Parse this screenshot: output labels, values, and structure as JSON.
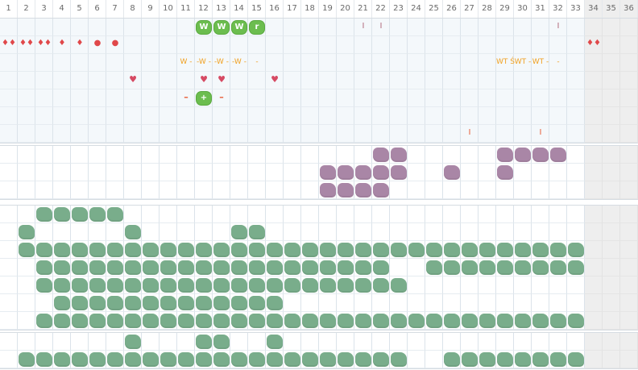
{
  "columns": [
    "1",
    "2",
    "3",
    "4",
    "5",
    "6",
    "7",
    "8",
    "9",
    "10",
    "11",
    "12",
    "13",
    "14",
    "15",
    "16",
    "17",
    "18",
    "19",
    "20",
    "21",
    "22",
    "23",
    "24",
    "25",
    "26",
    "27",
    "28",
    "29",
    "30",
    "31",
    "32",
    "33",
    "34",
    "35",
    "36"
  ],
  "grey_columns": [
    "34",
    "35",
    "36"
  ],
  "colors": {
    "green_tag": "#6cbd4f",
    "red": "#e0484a",
    "heart": "#d64a63",
    "orange": "#f0a020",
    "purple": "#a986a6",
    "green": "#79ad8b",
    "plus_red": "#e85a33"
  },
  "top_markers": [
    {
      "row": 0,
      "col": "12",
      "text": "W",
      "kind": "green_tag"
    },
    {
      "row": 0,
      "col": "13",
      "text": "W",
      "kind": "green_tag"
    },
    {
      "row": 0,
      "col": "14",
      "text": "W",
      "kind": "green_tag"
    },
    {
      "row": 0,
      "col": "15",
      "text": "r",
      "kind": "green_tag"
    },
    {
      "row": 0,
      "col": "21",
      "text": "I",
      "kind": "pink_bar"
    },
    {
      "row": 0,
      "col": "22",
      "text": "I",
      "kind": "pink_bar"
    },
    {
      "row": 0,
      "col": "32",
      "text": "I",
      "kind": "pink_bar"
    },
    {
      "row": 1,
      "col": "1",
      "text": "♦♦",
      "kind": "red"
    },
    {
      "row": 1,
      "col": "2",
      "text": "♦♦",
      "kind": "red"
    },
    {
      "row": 1,
      "col": "3",
      "text": "♦♦",
      "kind": "red"
    },
    {
      "row": 1,
      "col": "4",
      "text": "♦",
      "kind": "red"
    },
    {
      "row": 1,
      "col": "5",
      "text": "♦",
      "kind": "red"
    },
    {
      "row": 1,
      "col": "6",
      "text": "●",
      "kind": "red"
    },
    {
      "row": 1,
      "col": "7",
      "text": "●",
      "kind": "red"
    },
    {
      "row": 1,
      "col": "34",
      "text": "♦♦",
      "kind": "red"
    },
    {
      "row": 2,
      "col": "11",
      "text": "W -",
      "kind": "orange"
    },
    {
      "row": 2,
      "col": "12",
      "text": "-W -",
      "kind": "orange"
    },
    {
      "row": 2,
      "col": "13",
      "text": "-W -",
      "kind": "orange"
    },
    {
      "row": 2,
      "col": "14",
      "text": "-W -",
      "kind": "orange"
    },
    {
      "row": 2,
      "col": "15",
      "text": "-",
      "kind": "orange"
    },
    {
      "row": 2,
      "col": "29",
      "text": "WT Ś",
      "kind": "orange"
    },
    {
      "row": 2,
      "col": "30",
      "text": "WT -",
      "kind": "orange"
    },
    {
      "row": 2,
      "col": "31",
      "text": "WT -",
      "kind": "orange"
    },
    {
      "row": 2,
      "col": "32",
      "text": "-",
      "kind": "orange"
    },
    {
      "row": 3,
      "col": "8",
      "text": "♥",
      "kind": "heart"
    },
    {
      "row": 3,
      "col": "12",
      "text": "♥",
      "kind": "heart"
    },
    {
      "row": 3,
      "col": "13",
      "text": "♥",
      "kind": "heart"
    },
    {
      "row": 3,
      "col": "16",
      "text": "♥",
      "kind": "heart"
    },
    {
      "row": 4,
      "col": "11",
      "text": "–",
      "kind": "minus"
    },
    {
      "row": 4,
      "col": "12",
      "text": "+",
      "kind": "green_tag"
    },
    {
      "row": 4,
      "col": "13",
      "text": "–",
      "kind": "minus"
    },
    {
      "row": 6,
      "col": "27",
      "text": "I",
      "kind": "orange_bar"
    },
    {
      "row": 6,
      "col": "31",
      "text": "I",
      "kind": "orange_bar"
    }
  ],
  "purple_rows": [
    [
      "22",
      "23",
      "29",
      "30",
      "31",
      "32"
    ],
    [
      "19",
      "20",
      "21",
      "22",
      "23",
      "26",
      "29"
    ],
    [
      "19",
      "20",
      "21",
      "22"
    ]
  ],
  "green_rows": [
    [
      "3",
      "4",
      "5",
      "6",
      "7"
    ],
    [
      "2",
      "8",
      "14",
      "15"
    ],
    [
      "2",
      "3",
      "4",
      "5",
      "6",
      "7",
      "8",
      "9",
      "10",
      "11",
      "12",
      "13",
      "14",
      "15",
      "16",
      "17",
      "18",
      "19",
      "20",
      "21",
      "22",
      "23",
      "24",
      "25",
      "26",
      "27",
      "28",
      "29",
      "30",
      "31",
      "32",
      "33"
    ],
    [
      "3",
      "4",
      "5",
      "6",
      "7",
      "8",
      "9",
      "10",
      "11",
      "12",
      "13",
      "14",
      "15",
      "16",
      "17",
      "18",
      "19",
      "20",
      "21",
      "22",
      "25",
      "26",
      "27",
      "28",
      "29",
      "30",
      "31",
      "32",
      "33"
    ],
    [
      "3",
      "4",
      "5",
      "6",
      "7",
      "8",
      "9",
      "10",
      "11",
      "12",
      "13",
      "14",
      "15",
      "16",
      "17",
      "18",
      "19",
      "20",
      "21",
      "22",
      "23"
    ],
    [
      "4",
      "5",
      "6",
      "7",
      "8",
      "9",
      "10",
      "11",
      "12",
      "13",
      "14",
      "15",
      "16"
    ],
    [
      "3",
      "4",
      "5",
      "6",
      "7",
      "8",
      "9",
      "10",
      "11",
      "12",
      "13",
      "14",
      "15",
      "16",
      "17",
      "18",
      "19",
      "20",
      "21",
      "22",
      "23",
      "24",
      "25",
      "26",
      "27",
      "28",
      "29",
      "30",
      "31",
      "32",
      "33"
    ]
  ],
  "bottom_rows": [
    [
      "8",
      "12",
      "13",
      "16"
    ],
    [
      "2",
      "3",
      "4",
      "5",
      "6",
      "7",
      "8",
      "9",
      "10",
      "11",
      "12",
      "13",
      "14",
      "15",
      "16",
      "17",
      "18",
      "19",
      "20",
      "21",
      "22",
      "23",
      "26",
      "27",
      "28",
      "29",
      "30",
      "31",
      "32",
      "33"
    ]
  ]
}
